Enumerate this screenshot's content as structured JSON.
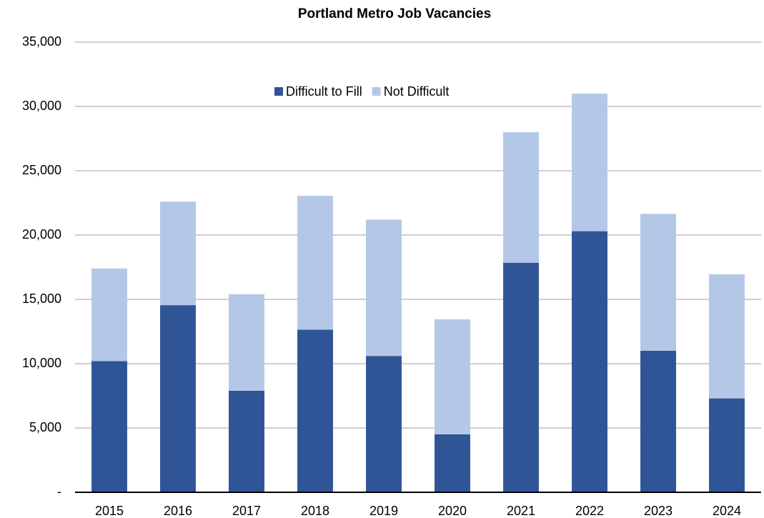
{
  "chart_data": {
    "type": "stacked_bar",
    "title": "Portland Metro Job Vacancies",
    "categories": [
      "2015",
      "2016",
      "2017",
      "2018",
      "2019",
      "2020",
      "2021",
      "2022",
      "2023",
      "2024"
    ],
    "series": [
      {
        "name": "Difficult to Fill",
        "color": "#2f5597",
        "values": [
          10200,
          14550,
          7900,
          12650,
          10600,
          4500,
          17850,
          20300,
          11000,
          7300
        ]
      },
      {
        "name": "Not Difficult",
        "color": "#b4c7e7",
        "values": [
          7200,
          8050,
          7500,
          10400,
          10600,
          8950,
          10150,
          10700,
          10650,
          9650
        ]
      }
    ],
    "ylim": [
      0,
      35000
    ],
    "yticks": [
      {
        "value": 0,
        "label": "-"
      },
      {
        "value": 5000,
        "label": "5,000"
      },
      {
        "value": 10000,
        "label": "10,000"
      },
      {
        "value": 15000,
        "label": "15,000"
      },
      {
        "value": 20000,
        "label": "20,000"
      },
      {
        "value": 25000,
        "label": "25,000"
      },
      {
        "value": 30000,
        "label": "30,000"
      },
      {
        "value": 35000,
        "label": "35,000"
      }
    ],
    "grid": true,
    "legend": "top"
  }
}
